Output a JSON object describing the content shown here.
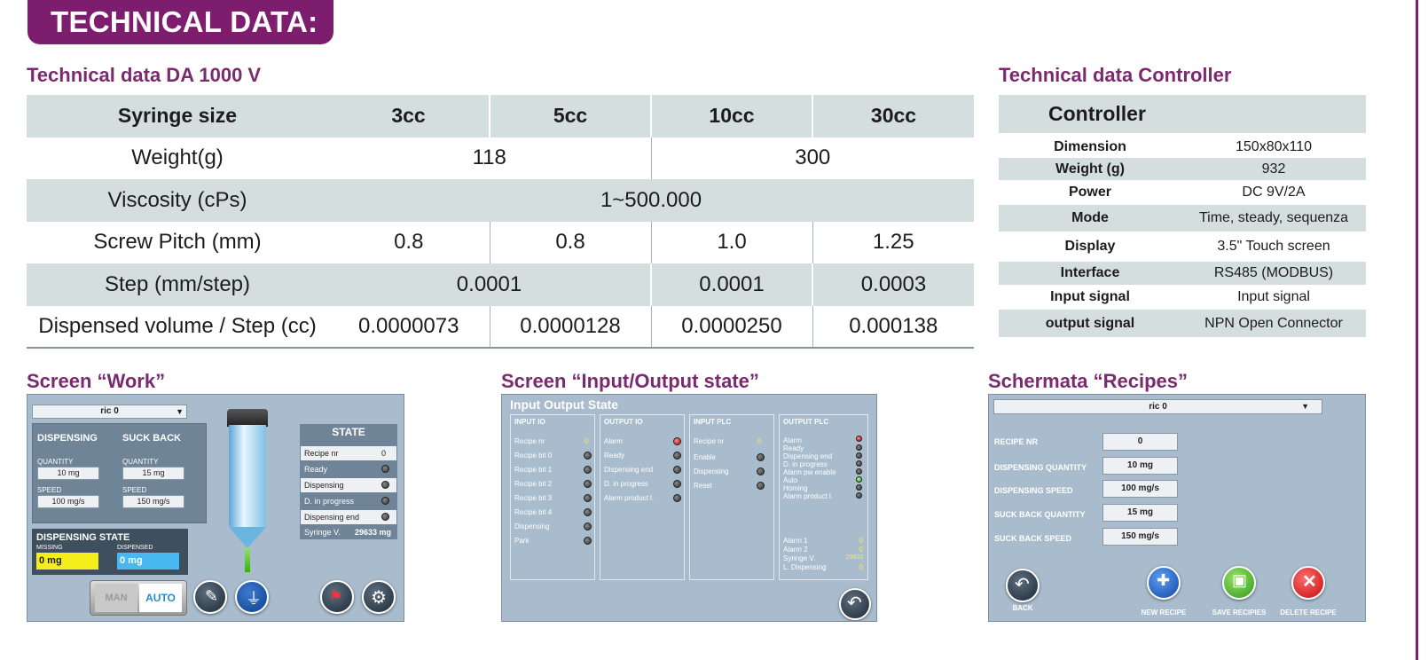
{
  "banner": "TECHNICAL DATA:",
  "main_title": "Technical data DA 1000 V",
  "ctrl_title": "Technical data Controller",
  "main_table": {
    "header": [
      "Syringe size",
      "3cc",
      "5cc",
      "10cc",
      "30cc"
    ],
    "weight": {
      "label": "Weight(g)",
      "v1": "118",
      "v2": "300"
    },
    "viscosity": {
      "label": "Viscosity (cPs)",
      "v": "1~500.000"
    },
    "pitch": {
      "label": "Screw Pitch (mm)",
      "v": [
        "0.8",
        "0.8",
        "1.0",
        "1.25"
      ]
    },
    "step": {
      "label": "Step (mm/step)",
      "v1": "0.0001",
      "v2": "0.0001",
      "v3": "0.0003"
    },
    "volume": {
      "label": "Dispensed volume / Step (cc)",
      "v": [
        "0.0000073",
        "0.0000128",
        "0.0000250",
        "0.000138"
      ]
    }
  },
  "ctrl_table": {
    "head": "Controller",
    "rows": [
      {
        "k": "Dimension",
        "v": "150x80x110"
      },
      {
        "k": "Weight (g)",
        "v": "932"
      },
      {
        "k": "Power",
        "v": "DC 9V/2A"
      },
      {
        "k": "Mode",
        "v": "Time, steady, sequenza"
      },
      {
        "k": "Display",
        "v": "3.5\" Touch screen"
      },
      {
        "k": "Interface",
        "v": "RS485 (MODBUS)"
      },
      {
        "k": "Input signal",
        "v": "Input signal"
      },
      {
        "k": "output signal",
        "v": "NPN Open Connector"
      }
    ]
  },
  "screens": {
    "work": {
      "title": "Screen “Work”",
      "recipe": "ric 0",
      "dispensing": "DISPENSING",
      "suckback": "SUCK BACK",
      "quantity": "QUANTITY",
      "speed": "SPEED",
      "d_qty": "10 mg",
      "d_speed": "100 mg/s",
      "s_qty": "15 mg",
      "s_speed": "150 mg/s",
      "disp_state": "DISPENSING STATE",
      "missing": "MISSING",
      "dispensed": "DISPENSED",
      "missing_val": "0 mg",
      "dispensed_val": "0 mg",
      "state": "STATE",
      "state_rows": [
        "Recipe nr",
        "Ready",
        "Dispensing",
        "D. in progress",
        "Dispensing end",
        "Syringe V."
      ],
      "recipe_nr": "0",
      "syringe_v": "29633 mg",
      "man": "MAN",
      "auto": "AUTO"
    },
    "io": {
      "title": "Screen “Input/Output state”",
      "header": "Input Output State",
      "input_io": {
        "title": "INPUT IO",
        "rows": [
          "Recipe nr",
          "Recipe bit 0",
          "Recipe bit 1",
          "Recipe bit 2",
          "Recipe bit 3",
          "Recipe bit 4",
          "Dispensing",
          "Park"
        ],
        "recipe_val": "0"
      },
      "output_io": {
        "title": "OUTPUT IO",
        "rows": [
          "Alarm",
          "Ready",
          "Dispensing end",
          "D. in progress",
          "Alarm product l."
        ]
      },
      "input_plc": {
        "title": "INPUT PLC",
        "rows": [
          "Recipe nr",
          "Enable",
          "Dispensing",
          "Reset"
        ],
        "recipe_val": "0"
      },
      "output_plc": {
        "title": "OUTPUT PLC",
        "rows": [
          "Alarm",
          "Ready",
          "Dispensing end",
          "D. in progress",
          "Alarm pw enable",
          "Auto",
          "Homing",
          "Alarm product l."
        ],
        "bottom": [
          {
            "k": "Alarm 1",
            "v": "0"
          },
          {
            "k": "Alarm 2",
            "v": "0"
          },
          {
            "k": "Syringe V.",
            "v": "29633"
          },
          {
            "k": "L. Dispensing",
            "v": "0"
          }
        ]
      }
    },
    "recipes": {
      "title": "Schermata “Recipes”",
      "recipe": "ric 0",
      "rows": [
        {
          "k": "RECIPE NR",
          "v": "0"
        },
        {
          "k": "DISPENSING QUANTITY",
          "v": "10 mg"
        },
        {
          "k": "DISPENSING SPEED",
          "v": "100 mg/s"
        },
        {
          "k": "SUCK BACK QUANTITY",
          "v": "15 mg"
        },
        {
          "k": "SUCK BACK SPEED",
          "v": "150 mg/s"
        }
      ],
      "buttons": [
        "BACK",
        "NEW RECIPE",
        "SAVE RECIPIES",
        "DELETE RECIPE"
      ]
    }
  },
  "colors": {
    "purple": "#7d1d6d",
    "grey_row": "#d5dede",
    "screen_bg": "#a9bccd"
  }
}
